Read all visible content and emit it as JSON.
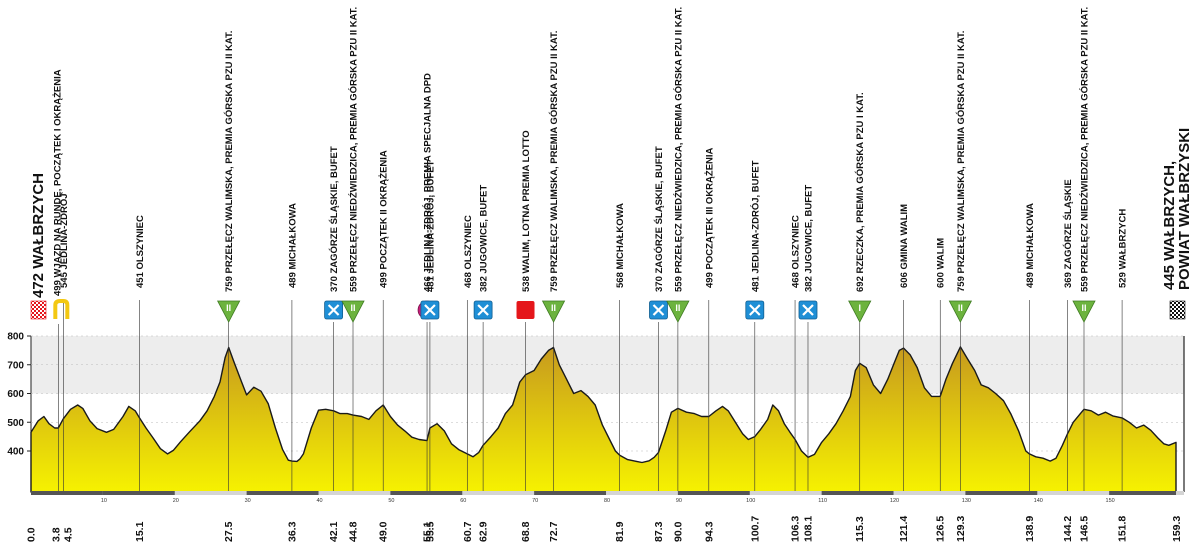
{
  "colors": {
    "profile_top": "#c79a1e",
    "profile_bottom": "#f6f200",
    "band": "#ededed",
    "climb": "#6cb33e",
    "feed": "#1f8fd6",
    "special": "#c81e7a",
    "sprint": "#e5161b",
    "lap": "#f3c812"
  },
  "chart_data": {
    "type": "area",
    "title": "",
    "xlabel": "",
    "ylabel": "",
    "x_range": [
      0,
      159.3
    ],
    "ylim": [
      260,
      840
    ],
    "y_ticks": [
      400,
      500,
      600,
      700,
      800
    ],
    "scale_ticks": [
      10,
      20,
      30,
      40,
      50,
      60,
      70,
      80,
      90,
      100,
      110,
      120,
      130,
      140,
      150
    ],
    "profile": [
      [
        0,
        465
      ],
      [
        1,
        505
      ],
      [
        1.8,
        520
      ],
      [
        2.5,
        495
      ],
      [
        3.3,
        480
      ],
      [
        3.8,
        480
      ],
      [
        4.5,
        512
      ],
      [
        5.5,
        545
      ],
      [
        6.5,
        560
      ],
      [
        7.2,
        548
      ],
      [
        8.2,
        505
      ],
      [
        9.2,
        478
      ],
      [
        10.5,
        465
      ],
      [
        11.5,
        475
      ],
      [
        12.8,
        520
      ],
      [
        13.6,
        555
      ],
      [
        14.5,
        540
      ],
      [
        15.1,
        515
      ],
      [
        16,
        480
      ],
      [
        17,
        445
      ],
      [
        18,
        408
      ],
      [
        19,
        390
      ],
      [
        19.8,
        402
      ],
      [
        20.8,
        432
      ],
      [
        22,
        465
      ],
      [
        23.5,
        505
      ],
      [
        24.5,
        540
      ],
      [
        25.5,
        590
      ],
      [
        26.3,
        640
      ],
      [
        27,
        725
      ],
      [
        27.5,
        760
      ],
      [
        28.2,
        712
      ],
      [
        29,
        660
      ],
      [
        30,
        595
      ],
      [
        31,
        622
      ],
      [
        32,
        608
      ],
      [
        33,
        565
      ],
      [
        34,
        480
      ],
      [
        35,
        405
      ],
      [
        35.8,
        368
      ],
      [
        36.3,
        365
      ],
      [
        37,
        364
      ],
      [
        37.4,
        372
      ],
      [
        37.9,
        390
      ],
      [
        39,
        480
      ],
      [
        40,
        542
      ],
      [
        41,
        545
      ],
      [
        42.1,
        540
      ],
      [
        43,
        530
      ],
      [
        44,
        530
      ],
      [
        44.8,
        525
      ],
      [
        46,
        520
      ],
      [
        47,
        510
      ],
      [
        48,
        540
      ],
      [
        49,
        560
      ],
      [
        50,
        520
      ],
      [
        51,
        490
      ],
      [
        52,
        470
      ],
      [
        53,
        448
      ],
      [
        54,
        440
      ],
      [
        55.1,
        436
      ],
      [
        55.5,
        480
      ],
      [
        56.5,
        495
      ],
      [
        57.5,
        470
      ],
      [
        58.5,
        425
      ],
      [
        59.5,
        405
      ],
      [
        60.7,
        390
      ],
      [
        61.5,
        380
      ],
      [
        62.3,
        395
      ],
      [
        62.9,
        420
      ],
      [
        64,
        450
      ],
      [
        65,
        480
      ],
      [
        66,
        530
      ],
      [
        67,
        560
      ],
      [
        68,
        640
      ],
      [
        68.8,
        665
      ],
      [
        70,
        680
      ],
      [
        71,
        720
      ],
      [
        72,
        750
      ],
      [
        72.7,
        760
      ],
      [
        73.5,
        700
      ],
      [
        74.5,
        650
      ],
      [
        75.5,
        600
      ],
      [
        76.5,
        610
      ],
      [
        77.5,
        590
      ],
      [
        78.5,
        560
      ],
      [
        79.5,
        490
      ],
      [
        80.5,
        440
      ],
      [
        81.3,
        400
      ],
      [
        81.9,
        385
      ],
      [
        83,
        370
      ],
      [
        84,
        365
      ],
      [
        85,
        360
      ],
      [
        86,
        366
      ],
      [
        86.7,
        378
      ],
      [
        87.3,
        395
      ],
      [
        88.3,
        470
      ],
      [
        89.1,
        535
      ],
      [
        90,
        548
      ],
      [
        91.2,
        535
      ],
      [
        92.3,
        530
      ],
      [
        93.3,
        520
      ],
      [
        94.3,
        520
      ],
      [
        95.3,
        540
      ],
      [
        96.2,
        555
      ],
      [
        97,
        540
      ],
      [
        98,
        500
      ],
      [
        99,
        460
      ],
      [
        99.8,
        440
      ],
      [
        100.7,
        450
      ],
      [
        101.5,
        475
      ],
      [
        102.5,
        510
      ],
      [
        103.2,
        560
      ],
      [
        104,
        540
      ],
      [
        104.8,
        495
      ],
      [
        105.6,
        465
      ],
      [
        106.3,
        440
      ],
      [
        107.2,
        400
      ],
      [
        108.1,
        378
      ],
      [
        109,
        388
      ],
      [
        110,
        430
      ],
      [
        111,
        460
      ],
      [
        112,
        495
      ],
      [
        113,
        540
      ],
      [
        114,
        590
      ],
      [
        114.7,
        680
      ],
      [
        115.3,
        705
      ],
      [
        116.2,
        690
      ],
      [
        117.2,
        630
      ],
      [
        118.2,
        600
      ],
      [
        119.2,
        650
      ],
      [
        120,
        700
      ],
      [
        120.8,
        750
      ],
      [
        121.4,
        758
      ],
      [
        122.3,
        735
      ],
      [
        123.3,
        690
      ],
      [
        124.3,
        620
      ],
      [
        125.3,
        590
      ],
      [
        126.5,
        590
      ],
      [
        127.3,
        650
      ],
      [
        128.2,
        705
      ],
      [
        129.3,
        762
      ],
      [
        130.3,
        720
      ],
      [
        131.3,
        680
      ],
      [
        132.2,
        630
      ],
      [
        133.2,
        620
      ],
      [
        134.2,
        600
      ],
      [
        135.3,
        575
      ],
      [
        136.3,
        530
      ],
      [
        137.4,
        470
      ],
      [
        138.4,
        400
      ],
      [
        138.9,
        390
      ],
      [
        139.8,
        380
      ],
      [
        140.8,
        375
      ],
      [
        141.8,
        365
      ],
      [
        142.6,
        375
      ],
      [
        143.5,
        420
      ],
      [
        144.2,
        460
      ],
      [
        145,
        500
      ],
      [
        146,
        530
      ],
      [
        146.5,
        545
      ],
      [
        147.5,
        540
      ],
      [
        148.5,
        525
      ],
      [
        149.5,
        535
      ],
      [
        150.5,
        522
      ],
      [
        151.8,
        515
      ],
      [
        152.8,
        500
      ],
      [
        153.8,
        480
      ],
      [
        154.8,
        490
      ],
      [
        155.8,
        472
      ],
      [
        156.8,
        445
      ],
      [
        157.6,
        425
      ],
      [
        158.3,
        420
      ],
      [
        159.3,
        430
      ]
    ],
    "waypoints": [
      {
        "km": "0.0",
        "x": 0,
        "label": "472 WAŁBRZYCH",
        "big": true,
        "icon": "start"
      },
      {
        "km": "3.8",
        "x": 3.8,
        "label": "499 WJAZD NA RUNDĘ, POCZĄTEK I OKRĄŻENIA",
        "icon": "lap"
      },
      {
        "km": "4.5",
        "x": 4.5,
        "label": "545 JEDLINA-ZDRÓJ"
      },
      {
        "km": "15.1",
        "x": 15.1,
        "label": "451 OLSZYNIEC"
      },
      {
        "km": "27.5",
        "x": 27.5,
        "label": "759 PRZEŁĘCZ WALIMSKA, PREMIA GÓRSKA PZU II KAT.",
        "icon": "climb",
        "cat": "II"
      },
      {
        "km": "36.3",
        "x": 36.3,
        "label": "489 MICHAŁKOWA"
      },
      {
        "km": "42.1",
        "x": 42.1,
        "label": "370 ZAGÓRZE ŚLĄSKIE, BUFET",
        "icon": "feed"
      },
      {
        "km": "44.8",
        "x": 44.8,
        "label": "559 PRZEŁĘCZ NIEDŹWIEDZICA, PREMIA GÓRSKA PZU II KAT.",
        "icon": "climb",
        "cat": "II"
      },
      {
        "km": "49.0",
        "x": 49.0,
        "label": "499 POCZĄTEK II OKRĄŻENIA"
      },
      {
        "km": "55.1",
        "x": 55.1,
        "label": "466 JEDLINA-ZDRÓJ, PREMIA SPECJALNA DPD",
        "icon": "special",
        "icon_text": "S"
      },
      {
        "km": "55.5",
        "x": 55.5,
        "label": "481 JEDLINA-ZDRÓJ, BUFET",
        "icon": "feed"
      },
      {
        "km": "60.7",
        "x": 60.7,
        "label": "468 OLSZYNIEC"
      },
      {
        "km": "62.9",
        "x": 62.9,
        "label": "382 JUGOWICE, BUFET",
        "icon": "feed"
      },
      {
        "km": "68.8",
        "x": 68.8,
        "label": "538 WALIM, LOTNA PREMIA LOTTO",
        "icon": "sprint"
      },
      {
        "km": "72.7",
        "x": 72.7,
        "label": "759 PRZEŁĘCZ WALIMSKA, PREMIA GÓRSKA PZU II KAT.",
        "icon": "climb",
        "cat": "II"
      },
      {
        "km": "81.9",
        "x": 81.9,
        "label": "568 MICHAŁKOWA"
      },
      {
        "km": "87.3",
        "x": 87.3,
        "label": "370 ZAGÓRZE ŚLĄSKIE, BUFET",
        "icon": "feed"
      },
      {
        "km": "90.0",
        "x": 90.0,
        "label": "559 PRZEŁĘCZ NIEDŹWIEDZICA, PREMIA GÓRSKA PZU II KAT.",
        "icon": "climb",
        "cat": "II"
      },
      {
        "km": "94.3",
        "x": 94.3,
        "label": "499 POCZĄTEK III OKRĄŻENIA"
      },
      {
        "km": "100.7",
        "x": 100.7,
        "label": "481 JEDLINA-ZDRÓJ, BUFET",
        "icon": "feed"
      },
      {
        "km": "106.3",
        "x": 106.3,
        "label": "468 OLSZYNIEC"
      },
      {
        "km": "108.1",
        "x": 108.1,
        "label": "382 JUGOWICE, BUFET",
        "icon": "feed"
      },
      {
        "km": "115.3",
        "x": 115.3,
        "label": "692 RZECZKA, PREMIA GÓRSKA PZU I KAT.",
        "icon": "climb",
        "cat": "I"
      },
      {
        "km": "121.4",
        "x": 121.4,
        "label": "606 GMINA WALIM"
      },
      {
        "km": "126.5",
        "x": 126.5,
        "label": "600 WALIM"
      },
      {
        "km": "129.3",
        "x": 129.3,
        "label": "759 PRZEŁĘCZ WALIMSKA, PREMIA GÓRSKA PZU II KAT.",
        "icon": "climb",
        "cat": "II"
      },
      {
        "km": "138.9",
        "x": 138.9,
        "label": "489 MICHAŁKOWA"
      },
      {
        "km": "144.2",
        "x": 144.2,
        "label": "369 ZAGÓRZE ŚLĄSKIE"
      },
      {
        "km": "146.5",
        "x": 146.5,
        "label": "559 PRZEŁĘCZ NIEDŹWIEDZICA, PREMIA GÓRSKA PZU II KAT.",
        "icon": "climb",
        "cat": "II"
      },
      {
        "km": "151.8",
        "x": 151.8,
        "label": "529 WAŁBRZYCH"
      },
      {
        "km": "159.3",
        "x": 159.3,
        "label": "445 WAŁBRZYCH,",
        "label2": "POWIAT WAŁBRZYSKI",
        "big": true,
        "icon": "finish"
      }
    ]
  }
}
